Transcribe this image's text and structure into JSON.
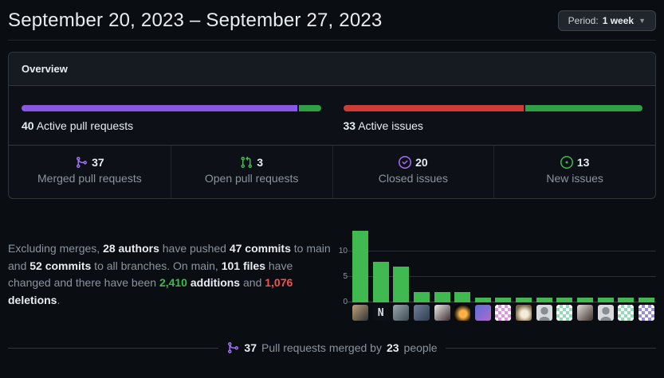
{
  "header": {
    "title": "September 20, 2023 – September 27, 2023",
    "period_button": {
      "prefix": "Period:",
      "value": "1 week",
      "caret_icon": "chevron-down-icon"
    }
  },
  "overview": {
    "title": "Overview",
    "pull_requests": {
      "count": "40",
      "label": "Active pull requests",
      "merged_pct": 92.5,
      "open_pct": 7.5,
      "merged_color": "#8957e5",
      "open_color": "#2ea043"
    },
    "issues": {
      "count": "33",
      "label": "Active issues",
      "closed_pct": 60.6,
      "new_pct": 39.4,
      "closed_color": "#cd3c34",
      "new_color": "#2ea043"
    },
    "stats": [
      {
        "icon": "git-merge-icon",
        "icon_color": "#a371f7",
        "value": "37",
        "label": "Merged pull requests"
      },
      {
        "icon": "git-pull-request-icon",
        "icon_color": "#3fb950",
        "value": "3",
        "label": "Open pull requests"
      },
      {
        "icon": "issue-closed-icon",
        "icon_color": "#a371f7",
        "value": "20",
        "label": "Closed issues"
      },
      {
        "icon": "issue-opened-icon",
        "icon_color": "#3fb950",
        "value": "13",
        "label": "New issues"
      }
    ]
  },
  "summary": {
    "segments": [
      {
        "text": "Excluding merges, ",
        "style": "muted"
      },
      {
        "text": "28 authors",
        "style": "bold"
      },
      {
        "text": " have pushed ",
        "style": "muted"
      },
      {
        "text": "47 commits",
        "style": "bold"
      },
      {
        "text": " to main and ",
        "style": "muted"
      },
      {
        "text": "52 commits",
        "style": "bold"
      },
      {
        "text": " to all branches. On main, ",
        "style": "muted"
      },
      {
        "text": "101 files",
        "style": "bold"
      },
      {
        "text": " have changed and there have been ",
        "style": "muted"
      },
      {
        "text": "2,410",
        "style": "additions"
      },
      {
        "text": " ",
        "style": "muted"
      },
      {
        "text": "additions",
        "style": "bold"
      },
      {
        "text": " and ",
        "style": "muted"
      },
      {
        "text": "1,076",
        "style": "deletions"
      },
      {
        "text": " ",
        "style": "muted"
      },
      {
        "text": "deletions",
        "style": "bold"
      },
      {
        "text": ".",
        "style": "muted"
      }
    ]
  },
  "chart_data": {
    "type": "bar",
    "title": "",
    "xlabel": "",
    "ylabel": "",
    "categories": [
      "author-1",
      "author-2",
      "author-3",
      "author-4",
      "author-5",
      "author-6",
      "author-7",
      "author-8",
      "author-9",
      "author-10",
      "author-11",
      "author-12",
      "author-13",
      "author-14",
      "author-15"
    ],
    "values": [
      14,
      8,
      7,
      2,
      2,
      2,
      1,
      1,
      1,
      1,
      1,
      1,
      1,
      1,
      1
    ],
    "yticks": [
      0,
      5,
      10
    ],
    "ylim": [
      0,
      15.6
    ],
    "bar_color": "#3fb950",
    "grid": "horizontal",
    "x_axis_labels": "author avatars",
    "avatars": [
      {
        "kind": "photo",
        "c1": "#bfa27a",
        "c2": "#2f3437"
      },
      {
        "kind": "logo",
        "c1": "#dfe3e8",
        "c2": "#0d1117"
      },
      {
        "kind": "photo",
        "c1": "#9aa7ae",
        "c2": "#3f4a52"
      },
      {
        "kind": "photo",
        "c1": "#70809a",
        "c2": "#313c4e"
      },
      {
        "kind": "photo",
        "c1": "#efecea",
        "c2": "#3a2e33"
      },
      {
        "kind": "glow",
        "c1": "#ffb347",
        "c2": "#0a0806"
      },
      {
        "kind": "photo",
        "c1": "#5a6fd8",
        "c2": "#b06ac8"
      },
      {
        "kind": "identicon",
        "c1": "#e292de",
        "c2": "#ffffff"
      },
      {
        "kind": "glow",
        "c1": "#f5ecd8",
        "c2": "#7a6844"
      },
      {
        "kind": "octocat",
        "c1": "#878d93",
        "c2": "#d7d9dd"
      },
      {
        "kind": "identicon",
        "c1": "#90dcb4",
        "c2": "#ffffff"
      },
      {
        "kind": "photo",
        "c1": "#e3dfdb",
        "c2": "#40342f"
      },
      {
        "kind": "octocat",
        "c1": "#878d93",
        "c2": "#d7d9dd"
      },
      {
        "kind": "identicon",
        "c1": "#90dcb4",
        "c2": "#ffffff"
      },
      {
        "kind": "identicon",
        "c1": "#988ce2",
        "c2": "#ffffff"
      }
    ]
  },
  "footer": {
    "icon": "git-merge-icon",
    "icon_color": "#a371f7",
    "count": "37",
    "text_mid": "Pull requests merged by",
    "people_count": "23",
    "text_end": "people"
  }
}
